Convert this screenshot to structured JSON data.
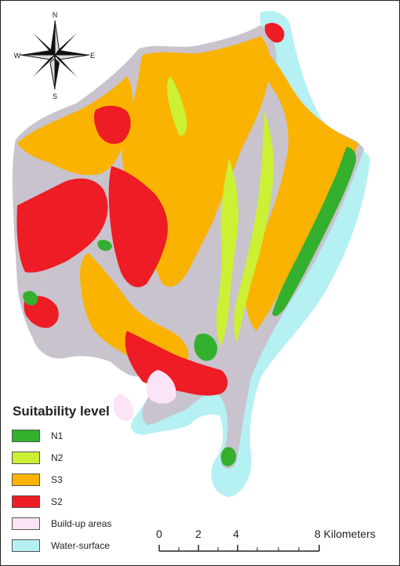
{
  "compass": {
    "north": "N",
    "south": "S",
    "west": "W",
    "east": "E"
  },
  "legend": {
    "title": "Suitability level",
    "items": [
      {
        "label": "N1",
        "color": "#33b02e"
      },
      {
        "label": "N2",
        "color": "#ccf033"
      },
      {
        "label": "S3",
        "color": "#fab300"
      },
      {
        "label": "S2",
        "color": "#ee1c24"
      },
      {
        "label": "Build-up areas",
        "color": "#fbe4f6"
      },
      {
        "label": "Water-surface",
        "color": "#b5f0f3"
      }
    ]
  },
  "scalebar": {
    "ticks": [
      "0",
      "2",
      "4",
      "8 Kilometers"
    ]
  }
}
